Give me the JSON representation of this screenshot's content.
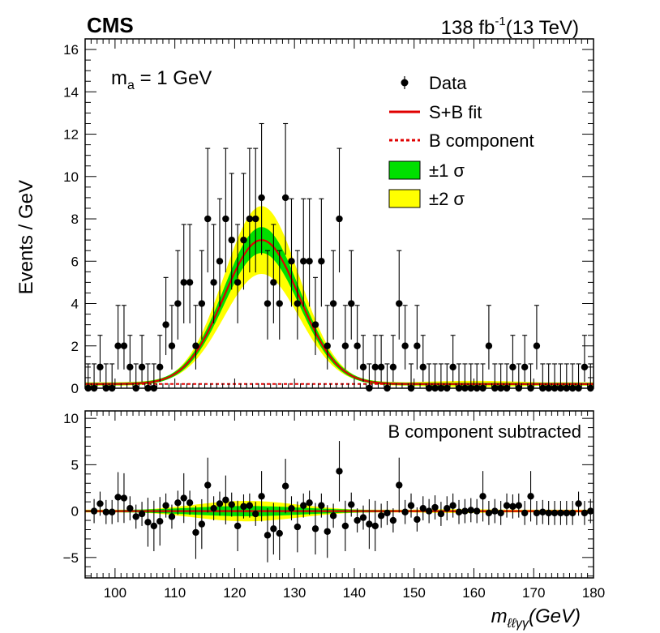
{
  "header": {
    "experiment": "CMS",
    "lumi_value": "138 fb",
    "lumi_exp": "-1",
    "energy": "(13 TeV)"
  },
  "axis_titles": {
    "y": "Events / GeV",
    "x_base": "m",
    "x_sub": "ℓℓγγ",
    "x_unit": "(GeV)"
  },
  "annotation": {
    "mass_base": "m",
    "mass_sub": "a",
    "mass_value": " = 1 GeV",
    "lower_label": "B component subtracted"
  },
  "legend": [
    {
      "key": "data",
      "label": "Data"
    },
    {
      "key": "sb",
      "label": "S+B fit"
    },
    {
      "key": "b",
      "label": "B component"
    },
    {
      "key": "s1",
      "label": "±1 σ"
    },
    {
      "key": "s2",
      "label": "±2 σ"
    }
  ],
  "colors": {
    "fit": "#e00000",
    "band1": "#00e000",
    "band2": "#ffff00",
    "data": "#000000"
  },
  "chart_data": [
    {
      "type": "scatter",
      "panel": "upper",
      "xlim": [
        95,
        180
      ],
      "ylim": [
        0,
        16.5
      ],
      "yticks": [
        0,
        2,
        4,
        6,
        8,
        10,
        12,
        14,
        16
      ],
      "ytick_labels": [
        "0",
        "2",
        "4",
        "6",
        "8",
        "10",
        "12",
        "14",
        "16"
      ],
      "ylabel": "Events / GeV",
      "data_points": {
        "x": [
          95.5,
          96.5,
          97.5,
          98.5,
          99.5,
          100.5,
          101.5,
          102.5,
          103.5,
          104.5,
          105.5,
          106.5,
          107.5,
          108.5,
          109.5,
          110.5,
          111.5,
          112.5,
          113.5,
          114.5,
          115.5,
          116.5,
          117.5,
          118.5,
          119.5,
          120.5,
          121.5,
          122.5,
          123.5,
          124.5,
          125.5,
          126.5,
          127.5,
          128.5,
          129.5,
          130.5,
          131.5,
          132.5,
          133.5,
          134.5,
          135.5,
          136.5,
          137.5,
          138.5,
          139.5,
          140.5,
          141.5,
          142.5,
          143.5,
          144.5,
          145.5,
          146.5,
          147.5,
          148.5,
          149.5,
          150.5,
          151.5,
          152.5,
          153.5,
          154.5,
          155.5,
          156.5,
          157.5,
          158.5,
          159.5,
          160.5,
          161.5,
          162.5,
          163.5,
          164.5,
          165.5,
          166.5,
          167.5,
          168.5,
          169.5,
          170.5,
          171.5,
          172.5,
          173.5,
          174.5,
          175.5,
          176.5,
          177.5,
          178.5,
          179.5
        ],
        "y": [
          0,
          0,
          1,
          0,
          0,
          2,
          2,
          1,
          0,
          1,
          0,
          0,
          1,
          3,
          2,
          4,
          5,
          5,
          2,
          4,
          8,
          5,
          6,
          8,
          7,
          5,
          7,
          8,
          8,
          9,
          4,
          5,
          4,
          9,
          6,
          4,
          6,
          6,
          3,
          6,
          2,
          4,
          8,
          2,
          4,
          2,
          1,
          0,
          1,
          1,
          0,
          1,
          4,
          2,
          0,
          2,
          1,
          0,
          0,
          0,
          0,
          1,
          0,
          0,
          0,
          0,
          0,
          2,
          0,
          0,
          0,
          1,
          0,
          1,
          0,
          2,
          0,
          0,
          0,
          0,
          0,
          0,
          0,
          1,
          0
        ]
      },
      "fit_model": {
        "description": "S+B fit ~ Gaussian peak near 124.5 GeV, sigma about 6.3 GeV, amplitude 6.8, background 0.2",
        "peak_mean": 124.5,
        "peak_sigma": 6.3,
        "peak_amplitude": 6.8,
        "background_level": 0.2,
        "band_1sigma_halfwidth": 0.55,
        "band_2sigma_halfwidth": 1.6
      }
    },
    {
      "type": "scatter",
      "panel": "lower",
      "xlim": [
        95,
        180
      ],
      "ylim": [
        -7.2,
        10.8
      ],
      "yticks": [
        -5,
        0,
        5,
        10
      ],
      "ytick_labels": [
        "−5",
        "0",
        "5",
        "10"
      ],
      "xticks": [
        100,
        110,
        120,
        130,
        140,
        150,
        160,
        170,
        180
      ],
      "xtick_labels": [
        "100",
        "110",
        "120",
        "130",
        "140",
        "150",
        "160",
        "170",
        "180"
      ],
      "xlabel": "m_ℓℓγγ (GeV)",
      "annotation": "B component subtracted",
      "data_points": {
        "x": [
          96.5,
          97.5,
          98.5,
          99.5,
          100.5,
          101.5,
          102.5,
          103.5,
          104.5,
          105.5,
          106.5,
          107.5,
          108.5,
          109.5,
          110.5,
          111.5,
          112.5,
          113.5,
          114.5,
          115.5,
          116.5,
          117.5,
          118.5,
          119.5,
          120.5,
          121.5,
          122.5,
          123.5,
          124.5,
          125.5,
          126.5,
          127.5,
          128.5,
          129.5,
          130.5,
          131.5,
          132.5,
          133.5,
          134.5,
          135.5,
          136.5,
          137.5,
          138.5,
          139.5,
          140.5,
          141.5,
          142.5,
          143.5,
          144.5,
          145.5,
          146.5,
          147.5,
          148.5,
          149.5,
          150.5,
          151.5,
          152.5,
          153.5,
          154.5,
          155.5,
          156.5,
          157.5,
          158.5,
          159.5,
          160.5,
          161.5,
          162.5,
          163.5,
          164.5,
          165.5,
          166.5,
          167.5,
          168.5,
          169.5,
          170.5,
          171.5,
          172.5,
          173.5,
          174.5,
          175.5,
          176.5,
          177.5,
          178.5,
          179.5
        ],
        "y": [
          0,
          0.8,
          -0.1,
          -0.1,
          1.5,
          1.4,
          0.3,
          -0.6,
          -0.3,
          -1.2,
          -1.6,
          -1.1,
          0.6,
          -0.6,
          0.9,
          1.4,
          0.9,
          -2.3,
          -1.4,
          2.8,
          0.3,
          0.8,
          1.2,
          0.7,
          -1.6,
          0.5,
          0.6,
          -0.3,
          1.6,
          -2.6,
          -1.9,
          -2.4,
          2.7,
          0.3,
          -1.7,
          0.6,
          0.9,
          -1.9,
          0.6,
          -2.2,
          -0.5,
          4.3,
          -1.6,
          0.7,
          -1.0,
          -0.7,
          -1.4,
          -1.6,
          -0.5,
          -0.2,
          -1.0,
          2.8,
          -0.1,
          0.6,
          -0.9,
          0.3,
          0,
          0.4,
          -0.3,
          0.3,
          0.6,
          -0.1,
          0,
          0.1,
          0,
          1.6,
          -0.2,
          0,
          -0.2,
          0.6,
          0.5,
          0.6,
          -0.2,
          1.6,
          -0.2,
          -0.1,
          -0.2,
          -0.2,
          -0.2,
          -0.2,
          -0.2,
          0.8,
          -0.2,
          0
        ]
      },
      "fit_model": {
        "description": "S component only after B subtraction, flat near 0 with small bump",
        "band_1sigma_halfwidth": 0.45,
        "band_2sigma_halfwidth": 1.1
      }
    }
  ]
}
